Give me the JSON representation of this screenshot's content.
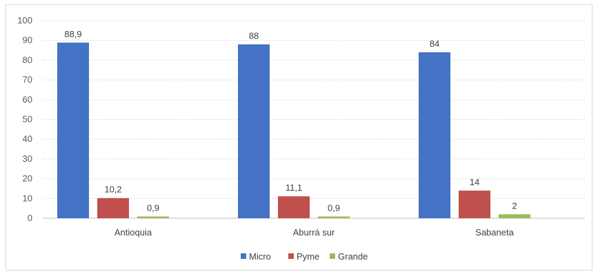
{
  "chart_data": {
    "type": "bar",
    "categories": [
      "Antioquia",
      "Aburrá sur",
      "Sabaneta"
    ],
    "series": [
      {
        "name": "Micro",
        "values": [
          88.9,
          88,
          84
        ],
        "labels": [
          "88,9",
          "88",
          "84"
        ],
        "color": "#4472c4"
      },
      {
        "name": "Pyme",
        "values": [
          10.2,
          11.1,
          14
        ],
        "labels": [
          "10,2",
          "11,1",
          "14"
        ],
        "color": "#c0504d"
      },
      {
        "name": "Grande",
        "values": [
          0.9,
          0.9,
          2
        ],
        "labels": [
          "0,9",
          "0,9",
          "2"
        ],
        "color": "#9bbb59"
      }
    ],
    "yticks": [
      "0",
      "10",
      "20",
      "30",
      "40",
      "50",
      "60",
      "70",
      "80",
      "90",
      "100"
    ],
    "ylim": [
      0,
      100
    ],
    "grid": true,
    "legend": "bottom"
  }
}
